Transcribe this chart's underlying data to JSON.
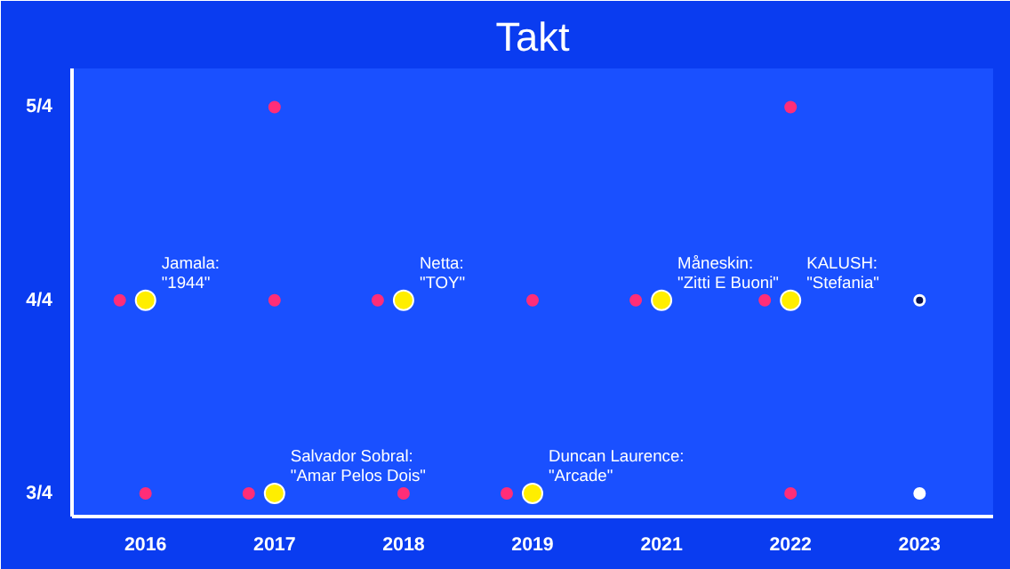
{
  "chart_data": {
    "type": "scatter",
    "title": "Takt",
    "categories": [
      "2016",
      "2017",
      "2018",
      "2019",
      "2021",
      "2022",
      "2023"
    ],
    "ylim": [
      0.72,
      1.3
    ],
    "yticks": [
      {
        "value": 0.75,
        "label": "3/4"
      },
      {
        "value": 1.0,
        "label": "4/4"
      },
      {
        "value": 1.25,
        "label": "5/4"
      }
    ],
    "grid": false,
    "marker": "circle",
    "series": [
      {
        "color": "#ff2d78",
        "values": [
          null,
          1.25,
          null,
          null,
          null,
          1.25,
          null
        ]
      },
      {
        "color": "#ff2d78",
        "values": [
          1.0,
          1.0,
          1.0,
          1.0,
          1.0,
          1.0,
          null
        ]
      },
      {
        "color": "#ff2d78",
        "values": [
          0.75,
          0.75,
          0.75,
          0.75,
          null,
          0.75,
          null
        ]
      },
      {
        "color": "#ffffff",
        "values": [
          null,
          null,
          null,
          null,
          null,
          null,
          1.0
        ]
      },
      {
        "color": "#ffffff",
        "values": [
          null,
          null,
          null,
          null,
          null,
          null,
          0.75
        ]
      },
      {
        "color": "#0a1450",
        "values": [
          null,
          null,
          null,
          null,
          null,
          null,
          1.0
        ]
      },
      {
        "color": "#ffee00",
        "values": [
          1.0,
          0.75,
          1.0,
          0.75,
          1.0,
          1.0,
          null
        ]
      }
    ],
    "annotations": [
      {
        "text": "Jamala:\n\"1944\"",
        "x": "2016",
        "y": 1.0
      },
      {
        "text": "Salvador Sobral:\n\"Amar Pelos Dois\"",
        "x": "2017",
        "y": 0.75
      },
      {
        "text": "Netta:\n\"TOY\"",
        "x": "2018",
        "y": 1.0
      },
      {
        "text": "Duncan Laurence:\n\"Arcade\"",
        "x": "2019",
        "y": 0.75
      },
      {
        "text": "Måneskin:\n\"Zitti E Buoni\"",
        "x": "2021",
        "y": 1.0
      },
      {
        "text": "KALUSH:\n\"Stefania\"",
        "x": "2022",
        "y": 1.0
      }
    ]
  }
}
